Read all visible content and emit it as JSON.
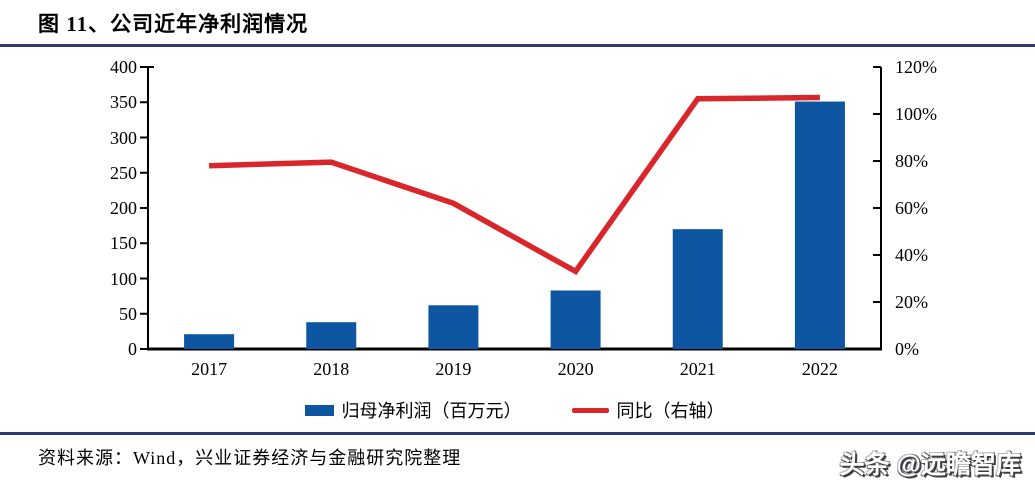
{
  "figure": {
    "title": "图 11、公司近年净利润情况",
    "source": "资料来源：Wind，兴业证券经济与金融研究院整理",
    "watermark": "头条 @远瞻智库"
  },
  "colors": {
    "bar": "#0F56A2",
    "line": "#D9262B",
    "rule": "#2F3C73",
    "axis": "#000000"
  },
  "chart_data": {
    "type": "bar",
    "title": "公司近年净利润情况",
    "categories": [
      "2017",
      "2018",
      "2019",
      "2020",
      "2021",
      "2022"
    ],
    "series": [
      {
        "name": "归母净利润（百万元）",
        "type": "bar",
        "axis": "left",
        "values": [
          21,
          38,
          62,
          83,
          170,
          351
        ]
      },
      {
        "name": "同比（右轴）",
        "type": "line",
        "axis": "right",
        "values": [
          78,
          79.5,
          62,
          33,
          106.5,
          107
        ]
      }
    ],
    "left_axis": {
      "min": 0,
      "max": 400,
      "tick_values": [
        0,
        50,
        100,
        150,
        200,
        250,
        300,
        350,
        400
      ],
      "tick_labels": [
        "0",
        "50",
        "100",
        "150",
        "200",
        "250",
        "300",
        "350",
        "400"
      ]
    },
    "right_axis": {
      "min": 0,
      "max": 120,
      "tick_values": [
        0,
        20,
        40,
        60,
        80,
        100,
        120
      ],
      "tick_labels": [
        "0%",
        "20%",
        "40%",
        "60%",
        "80%",
        "100%",
        "120%"
      ]
    },
    "grid": false,
    "legend_position": "bottom"
  }
}
